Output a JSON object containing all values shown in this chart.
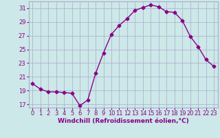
{
  "x": [
    0,
    1,
    2,
    3,
    4,
    5,
    6,
    7,
    8,
    9,
    10,
    11,
    12,
    13,
    14,
    15,
    16,
    17,
    18,
    19,
    20,
    21,
    22,
    23
  ],
  "y": [
    20.0,
    19.2,
    18.8,
    18.8,
    18.7,
    18.6,
    16.8,
    17.6,
    21.5,
    24.5,
    27.2,
    28.5,
    29.5,
    30.7,
    31.1,
    31.5,
    31.2,
    30.5,
    30.4,
    29.2,
    26.9,
    25.4,
    23.5,
    22.5
  ],
  "line_color": "#880088",
  "marker": "D",
  "markersize": 2.5,
  "linewidth": 1.0,
  "xlabel": "Windchill (Refroidissement éolien,°C)",
  "xlim": [
    -0.5,
    23.5
  ],
  "ylim": [
    16.5,
    32.0
  ],
  "yticks": [
    17,
    19,
    21,
    23,
    25,
    27,
    29,
    31
  ],
  "xticks": [
    0,
    1,
    2,
    3,
    4,
    5,
    6,
    7,
    8,
    9,
    10,
    11,
    12,
    13,
    14,
    15,
    16,
    17,
    18,
    19,
    20,
    21,
    22,
    23
  ],
  "bg_color": "#cce8e8",
  "grid_color": "#aaaacc",
  "tick_color": "#880088",
  "label_color": "#880088",
  "xlabel_fontsize": 6.5,
  "tick_fontsize": 6.0
}
